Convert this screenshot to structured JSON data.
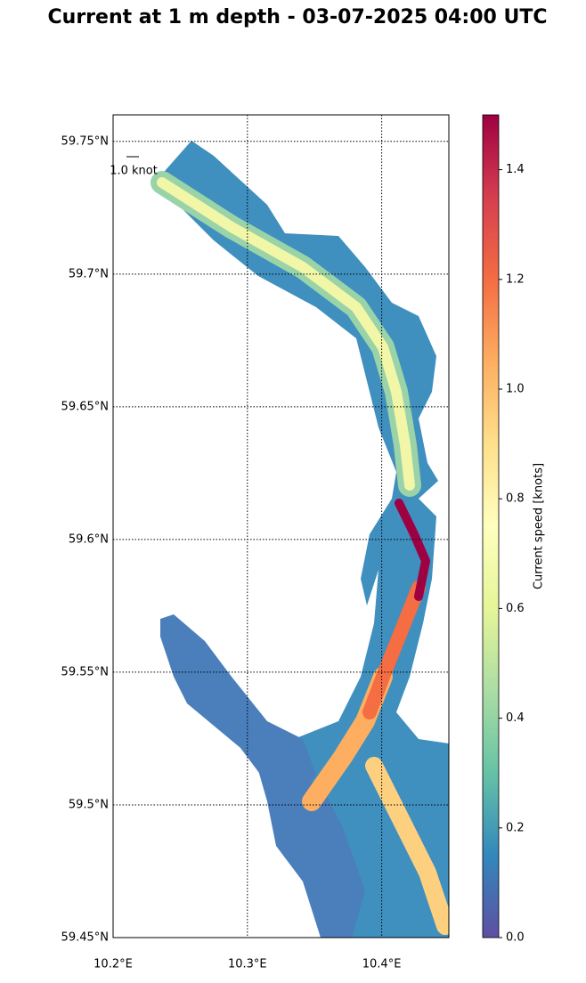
{
  "chart_data": {
    "type": "map",
    "title": "Current at 1 m depth - 03-07-2025 04:00 UTC",
    "xlim": [
      10.2,
      10.45
    ],
    "ylim": [
      59.45,
      59.76
    ],
    "xticks": [
      {
        "value": 10.2,
        "label": "10.2°E"
      },
      {
        "value": 10.3,
        "label": "10.3°E"
      },
      {
        "value": 10.4,
        "label": "10.4°E"
      }
    ],
    "yticks": [
      {
        "value": 59.45,
        "label": "59.45°N"
      },
      {
        "value": 59.5,
        "label": "59.5°N"
      },
      {
        "value": 59.55,
        "label": "59.55°N"
      },
      {
        "value": 59.6,
        "label": "59.6°N"
      },
      {
        "value": 59.65,
        "label": "59.65°N"
      },
      {
        "value": 59.7,
        "label": "59.7°N"
      },
      {
        "value": 59.75,
        "label": "59.75°N"
      }
    ],
    "grid": true,
    "quiver_key": "1.0 knot",
    "colorbar": {
      "label": "Current speed [knots]",
      "lim": [
        0,
        1.5
      ],
      "ticks": [
        {
          "value": 0,
          "label": "0.0"
        },
        {
          "value": 0.2,
          "label": "0.2"
        },
        {
          "value": 0.4,
          "label": "0.4"
        },
        {
          "value": 0.6,
          "label": "0.6"
        },
        {
          "value": 0.8,
          "label": "0.8"
        },
        {
          "value": 1.0,
          "label": "1.0"
        },
        {
          "value": 1.2,
          "label": "1.2"
        },
        {
          "value": 1.4,
          "label": "1.4"
        }
      ],
      "colormap": [
        "#5e4fa2",
        "#3288bd",
        "#66c2a5",
        "#abdda4",
        "#e6f598",
        "#ffffbf",
        "#fee08b",
        "#fdae61",
        "#f46d43",
        "#d53e4f",
        "#9e0142"
      ]
    }
  }
}
